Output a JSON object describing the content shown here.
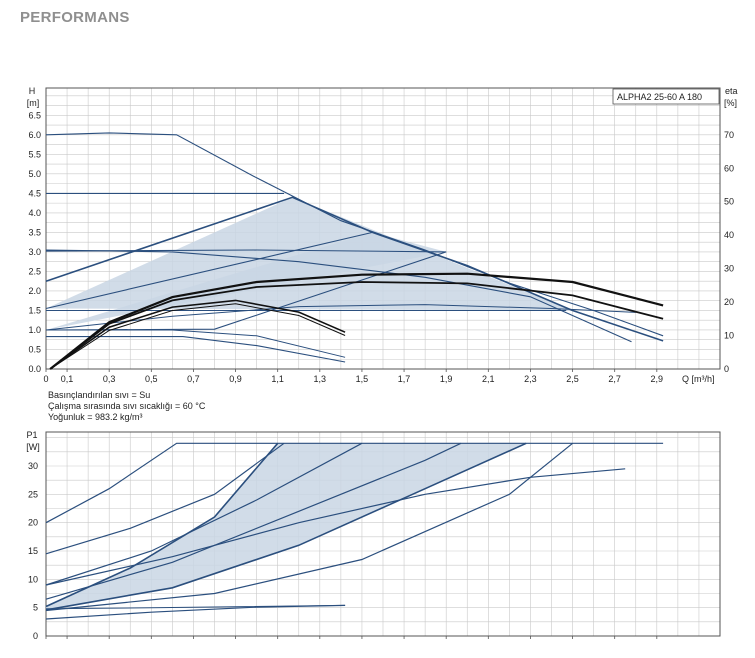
{
  "page": {
    "heading": "PERFORMANS"
  },
  "colors": {
    "curve": "#2b4f7e",
    "fill": "#c9d6e4",
    "grid": "#c9c9c9",
    "eta_curve": "#111111",
    "frame": "#555555"
  },
  "chart_data": [
    {
      "type": "line",
      "name": "head",
      "ylabel": [
        "H",
        "[m]"
      ],
      "y2label": [
        "eta",
        "[%]"
      ],
      "xlabel": "Q [m³/h]",
      "legend": "ALPHA2 25-60 A 180",
      "xlim": [
        0,
        3.2
      ],
      "ylim": [
        0,
        7.2
      ],
      "y2lim": [
        0,
        84
      ],
      "x_ticks": [
        "0",
        "0,1",
        "0,3",
        "0,5",
        "0,7",
        "0,9",
        "1,1",
        "1,3",
        "1,5",
        "1,7",
        "1,9",
        "2,1",
        "2,3",
        "2,5",
        "2,7",
        "2,9"
      ],
      "x_tick_values": [
        0,
        0.1,
        0.3,
        0.5,
        0.7,
        0.9,
        1.1,
        1.3,
        1.5,
        1.7,
        1.9,
        2.1,
        2.3,
        2.5,
        2.7,
        2.9
      ],
      "y_ticks": [
        "0.0",
        "0.5",
        "1.0",
        "1.5",
        "2.0",
        "2.5",
        "3.0",
        "3.5",
        "4.0",
        "4.5",
        "5.0",
        "5.5",
        "6.0",
        "6.5"
      ],
      "y_tick_values": [
        0,
        0.5,
        1.0,
        1.5,
        2.0,
        2.5,
        3.0,
        3.5,
        4.0,
        4.5,
        5.0,
        5.5,
        6.0,
        6.5
      ],
      "y2_ticks": [
        "0",
        "10",
        "20",
        "30",
        "40",
        "50",
        "60",
        "70"
      ],
      "y2_tick_values": [
        0,
        10,
        20,
        30,
        40,
        50,
        60,
        70
      ],
      "notes": [
        "Basınçlandırılan sıvı = Su",
        "Çalışma sırasında sıvı sıcaklığı = 60 °C",
        "Yoğunluk = 983.2 kg/m³"
      ],
      "shaded_regions": [
        [
          [
            0,
            1.55
          ],
          [
            1.17,
            4.4
          ],
          [
            2.5,
            1.5
          ],
          [
            0,
            1.55
          ]
        ],
        [
          [
            0,
            1.0
          ],
          [
            1.55,
            3.5
          ],
          [
            1.9,
            3.0
          ],
          [
            0,
            1.0
          ]
        ]
      ],
      "series": [
        {
          "points": [
            [
              0,
              6.0
            ],
            [
              0.3,
              6.05
            ],
            [
              0.62,
              6.0
            ],
            [
              1.0,
              4.9
            ],
            [
              1.4,
              3.8
            ],
            [
              1.8,
              3.05
            ],
            [
              2.2,
              2.2
            ],
            [
              2.6,
              1.5
            ],
            [
              2.93,
              0.85
            ]
          ],
          "width": 1.1
        },
        {
          "points": [
            [
              0,
              4.5
            ],
            [
              1.13,
              4.5
            ]
          ],
          "width": 1.1
        },
        {
          "points": [
            [
              0,
              2.25
            ],
            [
              1.17,
              4.4
            ],
            [
              1.55,
              3.5
            ],
            [
              2.0,
              2.65
            ],
            [
              2.5,
              1.5
            ],
            [
              2.93,
              0.72
            ]
          ],
          "width": 1.6
        },
        {
          "points": [
            [
              0,
              1.55
            ],
            [
              1.55,
              3.5
            ]
          ],
          "width": 1.1
        },
        {
          "points": [
            [
              0,
              3.02
            ],
            [
              1.0,
              3.05
            ],
            [
              1.9,
              3.0
            ]
          ],
          "width": 1.1
        },
        {
          "points": [
            [
              0,
              3.05
            ],
            [
              0.6,
              3.0
            ],
            [
              1.2,
              2.75
            ],
            [
              1.8,
              2.35
            ],
            [
              2.3,
              1.85
            ],
            [
              2.78,
              0.7
            ]
          ],
          "width": 1.1
        },
        {
          "points": [
            [
              0,
              1.5
            ],
            [
              2.47,
              1.5
            ]
          ],
          "width": 1.1
        },
        {
          "points": [
            [
              0,
              1.0
            ],
            [
              0.8,
              1.02
            ],
            [
              1.9,
              3.0
            ]
          ],
          "width": 1.1
        },
        {
          "points": [
            [
              0,
              0.83
            ],
            [
              0.65,
              0.83
            ],
            [
              1.0,
              0.6
            ],
            [
              1.42,
              0.18
            ]
          ],
          "width": 1.1
        },
        {
          "points": [
            [
              0,
              1.0
            ],
            [
              0.6,
              1.0
            ],
            [
              1.0,
              0.85
            ],
            [
              1.42,
              0.3
            ]
          ],
          "width": 1.0
        },
        {
          "points": [
            [
              0,
              1.0
            ],
            [
              0.6,
              1.35
            ],
            [
              1.2,
              1.6
            ],
            [
              1.8,
              1.65
            ],
            [
              2.4,
              1.55
            ],
            [
              2.8,
              1.45
            ]
          ],
          "width": 1.0
        }
      ],
      "eta_series": [
        {
          "points": [
            [
              0.02,
              0
            ],
            [
              0.3,
              14
            ],
            [
              0.6,
              21.5
            ],
            [
              1.0,
              26
            ],
            [
              1.5,
              28.2
            ],
            [
              2.0,
              28.5
            ],
            [
              2.5,
              26
            ],
            [
              2.93,
              19
            ]
          ],
          "width": 2.2
        },
        {
          "points": [
            [
              0.02,
              0
            ],
            [
              0.3,
              13.5
            ],
            [
              0.6,
              20.5
            ],
            [
              1.0,
              24.5
            ],
            [
              1.5,
              26
            ],
            [
              2.0,
              25.6
            ],
            [
              2.5,
              22
            ],
            [
              2.93,
              15
            ]
          ],
          "width": 1.8
        },
        {
          "points": [
            [
              0.02,
              0
            ],
            [
              0.3,
              12.5
            ],
            [
              0.6,
              18.5
            ],
            [
              0.9,
              20.5
            ],
            [
              1.2,
              17
            ],
            [
              1.42,
              11
            ]
          ],
          "width": 1.6
        },
        {
          "points": [
            [
              0.02,
              0
            ],
            [
              0.3,
              11.5
            ],
            [
              0.6,
              17.5
            ],
            [
              0.9,
              19.5
            ],
            [
              1.2,
              16
            ],
            [
              1.42,
              10
            ]
          ],
          "width": 1.0
        }
      ]
    },
    {
      "type": "line",
      "name": "power",
      "ylabel": [
        "P1",
        "[W]"
      ],
      "xlim": [
        0,
        3.2
      ],
      "ylim": [
        0,
        36
      ],
      "y_ticks": [
        "0",
        "5",
        "10",
        "15",
        "20",
        "25",
        "30"
      ],
      "y_tick_values": [
        0,
        5,
        10,
        15,
        20,
        25,
        30
      ],
      "x_tick_values": [
        0,
        0.1,
        0.3,
        0.5,
        0.7,
        0.9,
        1.1,
        1.3,
        1.5,
        1.7,
        1.9,
        2.1,
        2.3,
        2.5,
        2.7,
        2.9
      ],
      "shaded_regions": [
        [
          [
            0,
            5.2
          ],
          [
            0.4,
            12
          ],
          [
            0.8,
            21
          ],
          [
            1.1,
            34
          ],
          [
            2.28,
            34
          ],
          [
            1.8,
            26
          ],
          [
            1.2,
            16
          ],
          [
            0.6,
            8.5
          ],
          [
            0,
            4.6
          ]
        ]
      ],
      "series": [
        {
          "points": [
            [
              0,
              20
            ],
            [
              0.3,
              26
            ],
            [
              0.62,
              34
            ],
            [
              2.93,
              34
            ]
          ],
          "width": 1.2
        },
        {
          "points": [
            [
              0,
              14.5
            ],
            [
              0.4,
              19
            ],
            [
              0.8,
              25
            ],
            [
              1.13,
              34
            ]
          ],
          "width": 1.2
        },
        {
          "points": [
            [
              0,
              9
            ],
            [
              0.5,
              15
            ],
            [
              1.0,
              24
            ],
            [
              1.5,
              34
            ]
          ],
          "width": 1.2
        },
        {
          "points": [
            [
              0,
              5.2
            ],
            [
              0.4,
              12
            ],
            [
              0.8,
              21
            ],
            [
              1.1,
              34
            ]
          ],
          "width": 1.6
        },
        {
          "points": [
            [
              0,
              6.5
            ],
            [
              0.6,
              13
            ],
            [
              1.2,
              22
            ],
            [
              1.8,
              31
            ],
            [
              1.97,
              34
            ]
          ],
          "width": 1.2
        },
        {
          "points": [
            [
              0,
              4.6
            ],
            [
              0.6,
              8.5
            ],
            [
              1.2,
              16
            ],
            [
              1.8,
              26
            ],
            [
              2.28,
              34
            ]
          ],
          "width": 1.6
        },
        {
          "points": [
            [
              0,
              4.5
            ],
            [
              0.8,
              7.5
            ],
            [
              1.5,
              13.5
            ],
            [
              2.2,
              25
            ],
            [
              2.5,
              34
            ]
          ],
          "width": 1.2
        },
        {
          "points": [
            [
              0,
              9
            ],
            [
              0.6,
              14
            ],
            [
              1.2,
              20
            ],
            [
              1.8,
              25
            ],
            [
              2.3,
              28
            ],
            [
              2.75,
              29.5
            ]
          ],
          "width": 1.2
        },
        {
          "points": [
            [
              0,
              3
            ],
            [
              0.5,
              4.2
            ],
            [
              1.0,
              5.1
            ],
            [
              1.42,
              5.4
            ]
          ],
          "width": 1.2
        },
        {
          "points": [
            [
              0,
              4.8
            ],
            [
              0.5,
              5.0
            ],
            [
              1.42,
              5.4
            ]
          ],
          "width": 1.0
        }
      ]
    }
  ]
}
